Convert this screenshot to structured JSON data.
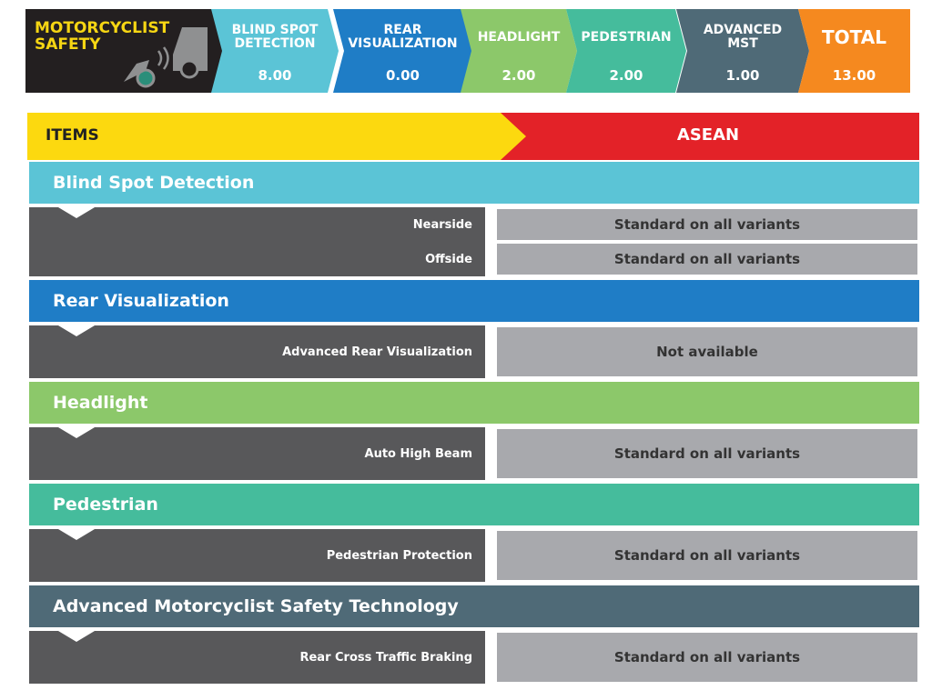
{
  "header": {
    "title": "MOTORCYCLIST SAFETY",
    "categories": [
      {
        "label": "BLIND SPOT DETECTION",
        "score": "8.00"
      },
      {
        "label": "REAR VISUALIZATION",
        "score": "0.00"
      },
      {
        "label": "HEADLIGHT",
        "score": "2.00"
      },
      {
        "label": "PEDESTRIAN",
        "score": "2.00"
      },
      {
        "label": "ADVANCED MST",
        "score": "1.00"
      },
      {
        "label": "TOTAL",
        "score": "13.00"
      }
    ]
  },
  "table": {
    "columns": [
      "ITEMS",
      "ASEAN"
    ],
    "sections": [
      {
        "title": "Blind Spot Detection",
        "items": [
          {
            "name": "Nearside",
            "value": "Standard on all variants"
          },
          {
            "name": "Offside",
            "value": "Standard on all variants"
          }
        ]
      },
      {
        "title": "Rear Visualization",
        "items": [
          {
            "name": "Advanced Rear Visualization",
            "value": "Not available"
          }
        ]
      },
      {
        "title": "Headlight",
        "items": [
          {
            "name": "Auto High Beam",
            "value": "Standard on all variants"
          }
        ]
      },
      {
        "title": "Pedestrian",
        "items": [
          {
            "name": "Pedestrian Protection",
            "value": "Standard on all variants"
          }
        ]
      },
      {
        "title": "Advanced Motorcyclist Safety Technology",
        "items": [
          {
            "name": "Rear Cross Traffic Braking",
            "value": "Standard on all variants"
          }
        ]
      }
    ]
  }
}
